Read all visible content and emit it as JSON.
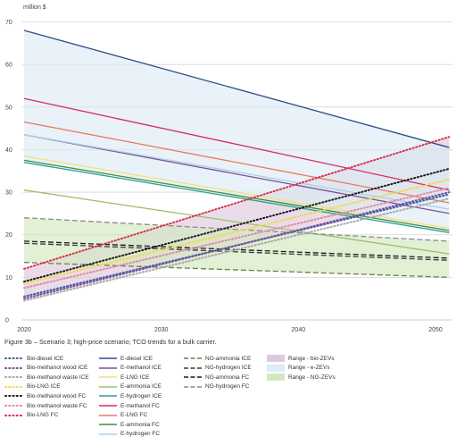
{
  "caption": "Figure 3b – Scenario 3; high-price scenario; TCO trends for a bulk carrier.",
  "chart_data": {
    "type": "line",
    "title": "",
    "ylabel": "million $",
    "xlabel": "",
    "x": [
      2020,
      2051
    ],
    "xticks": [
      2020,
      2030,
      2040,
      2050
    ],
    "xlim": [
      2019.5,
      2051
    ],
    "yticks": [
      0,
      10,
      20,
      30,
      40,
      50,
      60,
      70
    ],
    "ylim": [
      0,
      72
    ],
    "grid": "horizontal",
    "legend_position": "bottom",
    "ranges": [
      {
        "name": "Range - bio-ZEVs",
        "color": "#ddc9dc",
        "upper": [
          12.0,
          43.0
        ],
        "lower": [
          4.5,
          29.5
        ]
      },
      {
        "name": "Range - e-ZEVs",
        "color": "#dcebf5",
        "upper": [
          68.0,
          40.5
        ],
        "lower": [
          36.8,
          20.5
        ]
      },
      {
        "name": "Range - NG-ZEVs",
        "color": "#d3e8c0",
        "upper": [
          24.0,
          18.5
        ],
        "lower": [
          13.5,
          10.0
        ]
      }
    ],
    "series": [
      {
        "name": "Bio-diesel ICE",
        "color": "#3b63a8",
        "dash": "dot",
        "values": [
          5.5,
          29.5
        ]
      },
      {
        "name": "Bio-methanol wood ICE",
        "color": "#7b4f97",
        "dash": "dot",
        "values": [
          5.0,
          30.0
        ]
      },
      {
        "name": "Bio-methanol waste ICE",
        "color": "#a8a8a8",
        "dash": "dot",
        "values": [
          4.5,
          28.5
        ]
      },
      {
        "name": "Bio-LNG ICE",
        "color": "#f2d94e",
        "dash": "dot",
        "values": [
          8.5,
          33.0
        ]
      },
      {
        "name": "Bio-methanol wood FC",
        "color": "#1a1a1a",
        "dash": "dot",
        "values": [
          9.0,
          35.5
        ]
      },
      {
        "name": "Bio-methanol waste FC",
        "color": "#e08aa0",
        "dash": "dot",
        "values": [
          7.5,
          31.0
        ]
      },
      {
        "name": "Bio-LNG FC",
        "color": "#d8304a",
        "dash": "dot",
        "values": [
          12.0,
          43.0
        ]
      },
      {
        "name": "E-diesel ICE",
        "color": "#2c4e8a",
        "dash": "solid",
        "values": [
          68.0,
          40.5
        ]
      },
      {
        "name": "E-methanol ICE",
        "color": "#7b4f97",
        "dash": "solid",
        "values": [
          43.5,
          25.0
        ]
      },
      {
        "name": "E-LNG ICE",
        "color": "#f2e27a",
        "dash": "solid",
        "values": [
          38.5,
          21.5
        ]
      },
      {
        "name": "E-ammonia ICE",
        "color": "#9cc06a",
        "dash": "solid",
        "values": [
          30.5,
          15.5
        ]
      },
      {
        "name": "E-hydrogen ICE",
        "color": "#2d9f8c",
        "dash": "solid",
        "values": [
          37.0,
          20.5
        ]
      },
      {
        "name": "E-methanol FC",
        "color": "#d62a6b",
        "dash": "solid",
        "values": [
          52.0,
          30.5
        ]
      },
      {
        "name": "E-LNG FC",
        "color": "#e9795d",
        "dash": "solid",
        "values": [
          46.5,
          27.5
        ]
      },
      {
        "name": "E-ammonia FC",
        "color": "#3f8f3f",
        "dash": "solid",
        "values": [
          37.5,
          21.0
        ]
      },
      {
        "name": "E-hydrogen FC",
        "color": "#a9cfe6",
        "dash": "solid",
        "values": [
          43.5,
          26.0
        ]
      },
      {
        "name": "NG-ammonia ICE",
        "color": "#6e7f45",
        "dash": "dash",
        "values": [
          13.5,
          10.0
        ]
      },
      {
        "name": "NG-hydrogen ICE",
        "color": "#3a3a3a",
        "dash": "dash",
        "values": [
          18.0,
          14.0
        ]
      },
      {
        "name": "NG-ammonia FC",
        "color": "#1a1a1a",
        "dash": "dash",
        "values": [
          18.5,
          14.5
        ]
      },
      {
        "name": "NG-hydrogen FC",
        "color": "#8a8a8a",
        "dash": "dash",
        "values": [
          24.0,
          18.5
        ]
      }
    ]
  }
}
